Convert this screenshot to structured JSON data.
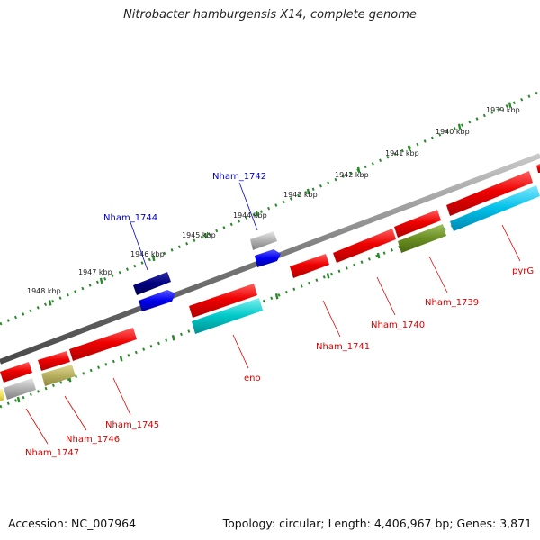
{
  "title": "Nitrobacter hamburgensis X14, complete genome",
  "footer": {
    "accession": "Accession: NC_007964",
    "summary": "Topology: circular; Length: 4,406,967 bp; Genes: 3,871"
  },
  "colors": {
    "backbone": "#777777",
    "ticks": "#2a8a2a",
    "red": "#ee0000",
    "blue": "#0000ee",
    "navy": "#000080",
    "cyan": "#00c0e0",
    "teal": "#00c8c8",
    "olive": "#6b8e23",
    "khaki": "#b8b060",
    "grey": "#b0b0b0",
    "yellow": "#f0e060"
  },
  "kbp_labels": [
    "1939 kbp",
    "1940 kbp",
    "1941 kbp",
    "1942 kbp",
    "1943 kbp",
    "1944 kbp",
    "1945 kbp",
    "1946 kbp",
    "1947 kbp",
    "1948 kbp"
  ],
  "gene_labels": [
    {
      "id": "nham1742",
      "text": "Nham_1742",
      "color": "blue"
    },
    {
      "id": "nham1744",
      "text": "Nham_1744",
      "color": "blue"
    },
    {
      "id": "pyrg",
      "text": "pyrG",
      "color": "red"
    },
    {
      "id": "nham1739",
      "text": "Nham_1739",
      "color": "red"
    },
    {
      "id": "nham1740",
      "text": "Nham_1740",
      "color": "red"
    },
    {
      "id": "nham1741",
      "text": "Nham_1741",
      "color": "red"
    },
    {
      "id": "eno",
      "text": "eno",
      "color": "red"
    },
    {
      "id": "nham1745",
      "text": "Nham_1745",
      "color": "red"
    },
    {
      "id": "nham1746",
      "text": "Nham_1746",
      "color": "red"
    },
    {
      "id": "nham1747",
      "text": "Nham_1747",
      "color": "red"
    }
  ]
}
